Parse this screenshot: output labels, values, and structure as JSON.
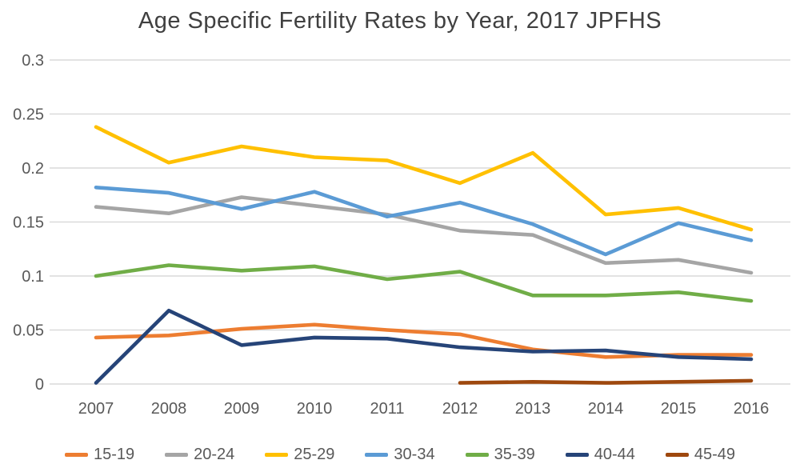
{
  "title": "Age Specific Fertility Rates by Year, 2017 JPFHS",
  "colors": {
    "grid": "#D9D9D9",
    "tick_label": "#595959",
    "title_text": "#404040",
    "background": "#FFFFFF"
  },
  "chart_data": {
    "type": "line",
    "title": "Age Specific Fertility Rates by Year, 2017 JPFHS",
    "xlabel": "",
    "ylabel": "",
    "grid": true,
    "legend_position": "bottom",
    "ylim": [
      0,
      0.3
    ],
    "yticks": [
      {
        "value": 0.3,
        "label": "0.3"
      },
      {
        "value": 0.25,
        "label": "0.25"
      },
      {
        "value": 0.2,
        "label": "0.2"
      },
      {
        "value": 0.15,
        "label": "0.15"
      },
      {
        "value": 0.1,
        "label": "0.1"
      },
      {
        "value": 0.05,
        "label": "0.05"
      },
      {
        "value": 0,
        "label": "0"
      }
    ],
    "categories": [
      "2007",
      "2008",
      "2009",
      "2010",
      "2011",
      "2012",
      "2013",
      "2014",
      "2015",
      "2016"
    ],
    "series": [
      {
        "name": "15-19",
        "color": "#ED7D31",
        "values": [
          0.043,
          0.045,
          0.051,
          0.055,
          0.05,
          0.046,
          0.032,
          0.025,
          0.027,
          0.027
        ]
      },
      {
        "name": "20-24",
        "color": "#A5A5A5",
        "values": [
          0.164,
          0.158,
          0.173,
          0.165,
          0.157,
          0.142,
          0.138,
          0.112,
          0.115,
          0.103
        ]
      },
      {
        "name": "25-29",
        "color": "#FFC000",
        "values": [
          0.238,
          0.205,
          0.22,
          0.21,
          0.207,
          0.186,
          0.214,
          0.157,
          0.163,
          0.143
        ]
      },
      {
        "name": "30-34",
        "color": "#5B9BD5",
        "values": [
          0.182,
          0.177,
          0.162,
          0.178,
          0.155,
          0.168,
          0.148,
          0.12,
          0.149,
          0.133
        ]
      },
      {
        "name": "35-39",
        "color": "#70AD47",
        "values": [
          0.1,
          0.11,
          0.105,
          0.109,
          0.097,
          0.104,
          0.082,
          0.082,
          0.085,
          0.077
        ]
      },
      {
        "name": "40-44",
        "color": "#264478",
        "values": [
          0.001,
          0.068,
          0.036,
          0.043,
          0.042,
          0.034,
          0.03,
          0.031,
          0.025,
          0.023
        ]
      },
      {
        "name": "45-49",
        "color": "#9E480E",
        "values": [
          null,
          null,
          null,
          null,
          null,
          0.001,
          0.002,
          0.001,
          0.002,
          0.003
        ]
      }
    ]
  }
}
